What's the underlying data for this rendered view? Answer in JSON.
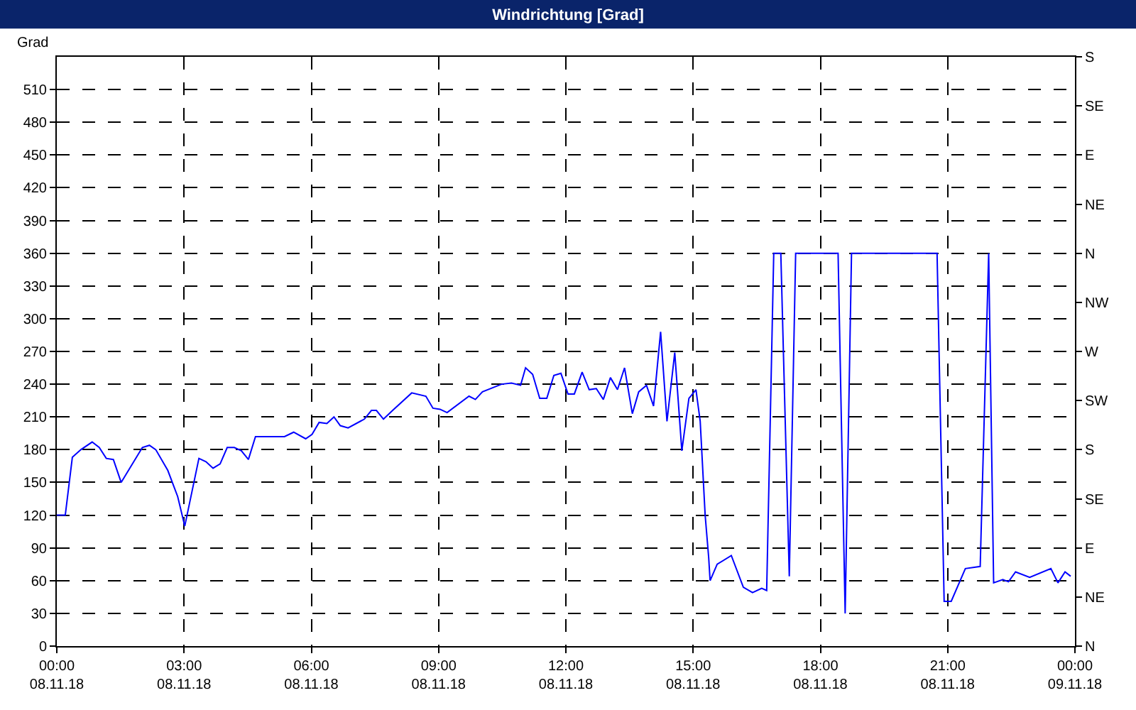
{
  "chart_data": {
    "type": "line",
    "title": "Windrichtung [Grad]",
    "ylabel": "Grad",
    "x": [
      "--11-08T00:00",
      "--11-08T00:12",
      "--11-08T00:22",
      "--11-08T00:34",
      "--11-08T00:50",
      "--11-08T01:00",
      "--11-08T01:10",
      "--11-08T01:20",
      "--11-08T01:31",
      "--11-08T01:47",
      "--11-08T02:01",
      "--11-08T02:11",
      "--11-08T02:20",
      "--11-08T02:37",
      "--11-08T02:51",
      "--11-08T03:01",
      "--11-08T03:21",
      "--11-08T03:31",
      "--11-08T03:41",
      "--11-08T03:51",
      "--11-08T04:01",
      "--11-08T04:11",
      "--11-08T04:21",
      "--11-08T04:31",
      "--11-08T04:41",
      "--11-08T05:11",
      "--11-08T05:22",
      "--11-08T05:35",
      "--11-08T05:52",
      "--11-08T06:01",
      "--11-08T06:11",
      "--11-08T06:22",
      "--11-08T06:32",
      "--11-08T06:41",
      "--11-08T06:52",
      "--11-08T07:15",
      "--11-08T07:25",
      "--11-08T07:32",
      "--11-08T07:42",
      "--11-08T07:55",
      "--11-08T08:22",
      "--11-08T08:42",
      "--11-08T08:52",
      "--11-08T09:02",
      "--11-08T09:12",
      "--11-08T09:43",
      "--11-08T09:52",
      "--11-08T10:02",
      "--11-08T10:29",
      "--11-08T10:43",
      "--11-08T10:56",
      "--11-08T11:03",
      "--11-08T11:13",
      "--11-08T11:23",
      "--11-08T11:33",
      "--11-08T11:43",
      "--11-08T11:53",
      "--11-08T12:03",
      "--11-08T12:12",
      "--11-08T12:23",
      "--11-08T12:33",
      "--11-08T12:43",
      "--11-08T12:53",
      "--11-08T13:03",
      "--11-08T13:13",
      "--11-08T13:23",
      "--11-08T13:34",
      "--11-08T13:43",
      "--11-08T13:54",
      "--11-08T14:04",
      "--11-08T14:14",
      "--11-08T14:23",
      "--11-08T14:34",
      "--11-08T14:44",
      "--11-08T14:54",
      "--11-08T15:04",
      "--11-08T15:10",
      "--11-08T15:17",
      "--11-08T15:22",
      "--11-08T15:24",
      "--11-08T15:34",
      "--11-08T15:54",
      "--11-08T16:11",
      "--11-08T16:24",
      "--11-08T16:37",
      "--11-08T16:44",
      "--11-08T16:47",
      "--11-08T16:54",
      "--11-08T17:04",
      "--11-08T17:16",
      "--11-08T17:25",
      "--11-08T18:25",
      "--11-08T18:35",
      "--11-08T18:44",
      "--11-08T20:45",
      "--11-08T20:55",
      "--11-08T21:05",
      "--11-08T21:25",
      "--11-08T21:46",
      "--11-08T21:58",
      "--11-08T22:05",
      "--11-08T22:18",
      "--11-08T22:26",
      "--11-08T22:36",
      "--11-08T22:56",
      "--11-08T23:26",
      "--11-08T23:36",
      "--11-08T23:46",
      "--11-08T23:54"
    ],
    "series": [
      {
        "color": "#0000ff",
        "values": [
          120,
          120,
          173,
          180,
          187,
          182,
          172,
          171,
          150,
          167,
          182,
          184,
          180,
          161,
          137,
          110,
          172,
          169,
          163,
          167,
          182,
          182,
          179,
          171,
          192,
          192,
          192,
          196,
          190,
          194,
          205,
          204,
          210,
          202,
          200,
          208,
          216,
          216,
          208,
          216,
          232,
          229,
          218,
          217,
          214,
          229,
          226,
          233,
          240,
          241,
          239,
          255,
          249,
          227,
          227,
          248,
          250,
          231,
          231,
          251,
          235,
          236,
          226,
          246,
          235,
          255,
          213,
          233,
          239,
          220,
          288,
          206,
          269,
          179,
          227,
          235,
          206,
          120,
          81,
          60,
          75,
          83,
          54,
          49,
          53,
          51,
          143,
          360,
          360,
          64,
          360,
          360,
          30,
          360,
          360,
          41,
          41,
          71,
          73,
          360,
          58,
          61,
          59,
          68,
          63,
          71,
          58,
          68,
          64
        ]
      }
    ],
    "xlim": [
      "--11-08T00:00",
      "--11-09T00:00"
    ],
    "xticks": [
      {
        "value": "--11-08T00:00",
        "label": "00:00\n08.11.18"
      },
      {
        "value": "--11-08T03:00",
        "label": "03:00\n08.11.18"
      },
      {
        "value": "--11-08T06:00",
        "label": "06:00\n08.11.18"
      },
      {
        "value": "--11-08T09:00",
        "label": "09:00\n08.11.18"
      },
      {
        "value": "--11-08T12:00",
        "label": "12:00\n08.11.18"
      },
      {
        "value": "--11-08T15:00",
        "label": "15:00\n08.11.18"
      },
      {
        "value": "--11-08T18:00",
        "label": "18:00\n08.11.18"
      },
      {
        "value": "--11-08T21:00",
        "label": "21:00\n08.11.18"
      },
      {
        "value": "--11-09T00:00",
        "label": "00:00\n09.11.18"
      }
    ],
    "ylim": [
      0,
      540
    ],
    "yticks": [
      0,
      30,
      60,
      90,
      120,
      150,
      180,
      210,
      240,
      270,
      300,
      330,
      360,
      390,
      420,
      450,
      480,
      510
    ],
    "y2_categories": [
      "S",
      "SE",
      "E",
      "NE",
      "N",
      "NW",
      "W",
      "SW",
      "S",
      "SE",
      "E",
      "NE",
      "N"
    ],
    "grid": true,
    "marker": "none",
    "line_style": "solid"
  }
}
